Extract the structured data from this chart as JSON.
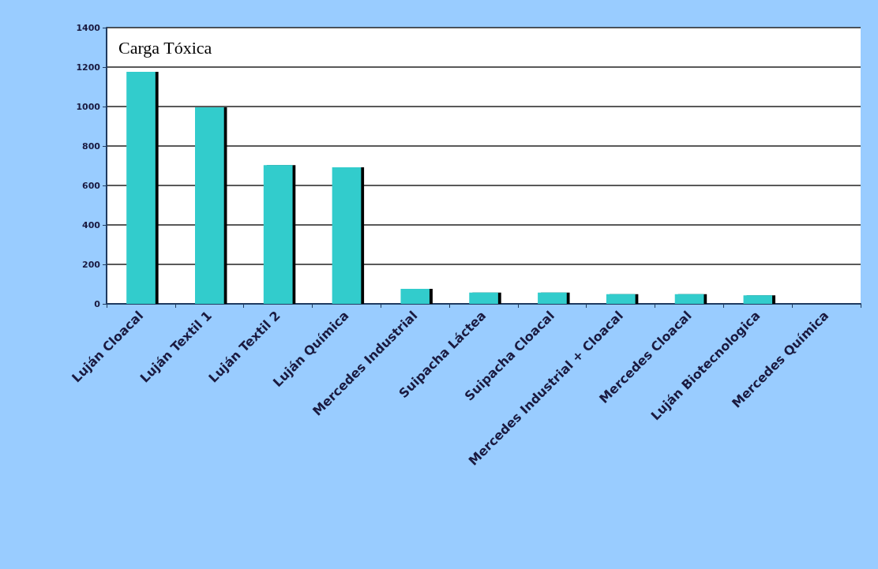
{
  "chart_data": {
    "type": "bar",
    "title": "Carga Tóxica",
    "categories": [
      "Luján Cloacal",
      "Luján Textil 1",
      "Luján Textil 2",
      "Luján Química",
      "Mercedes Industrial",
      "Suipacha Láctea",
      "Suipacha Cloacal",
      "Mercedes Industrial + Cloacal",
      "Mercedes Cloacal",
      "Luján Biotecnologica",
      "Mercedes Química"
    ],
    "values": [
      1176,
      996,
      703,
      692,
      76,
      57,
      57,
      49,
      49,
      43,
      0
    ],
    "color": "#33cccc",
    "ylim": [
      0,
      1400
    ],
    "yticks": [
      0,
      200,
      400,
      600,
      800,
      1000,
      1200,
      1400
    ],
    "grid": "y"
  }
}
